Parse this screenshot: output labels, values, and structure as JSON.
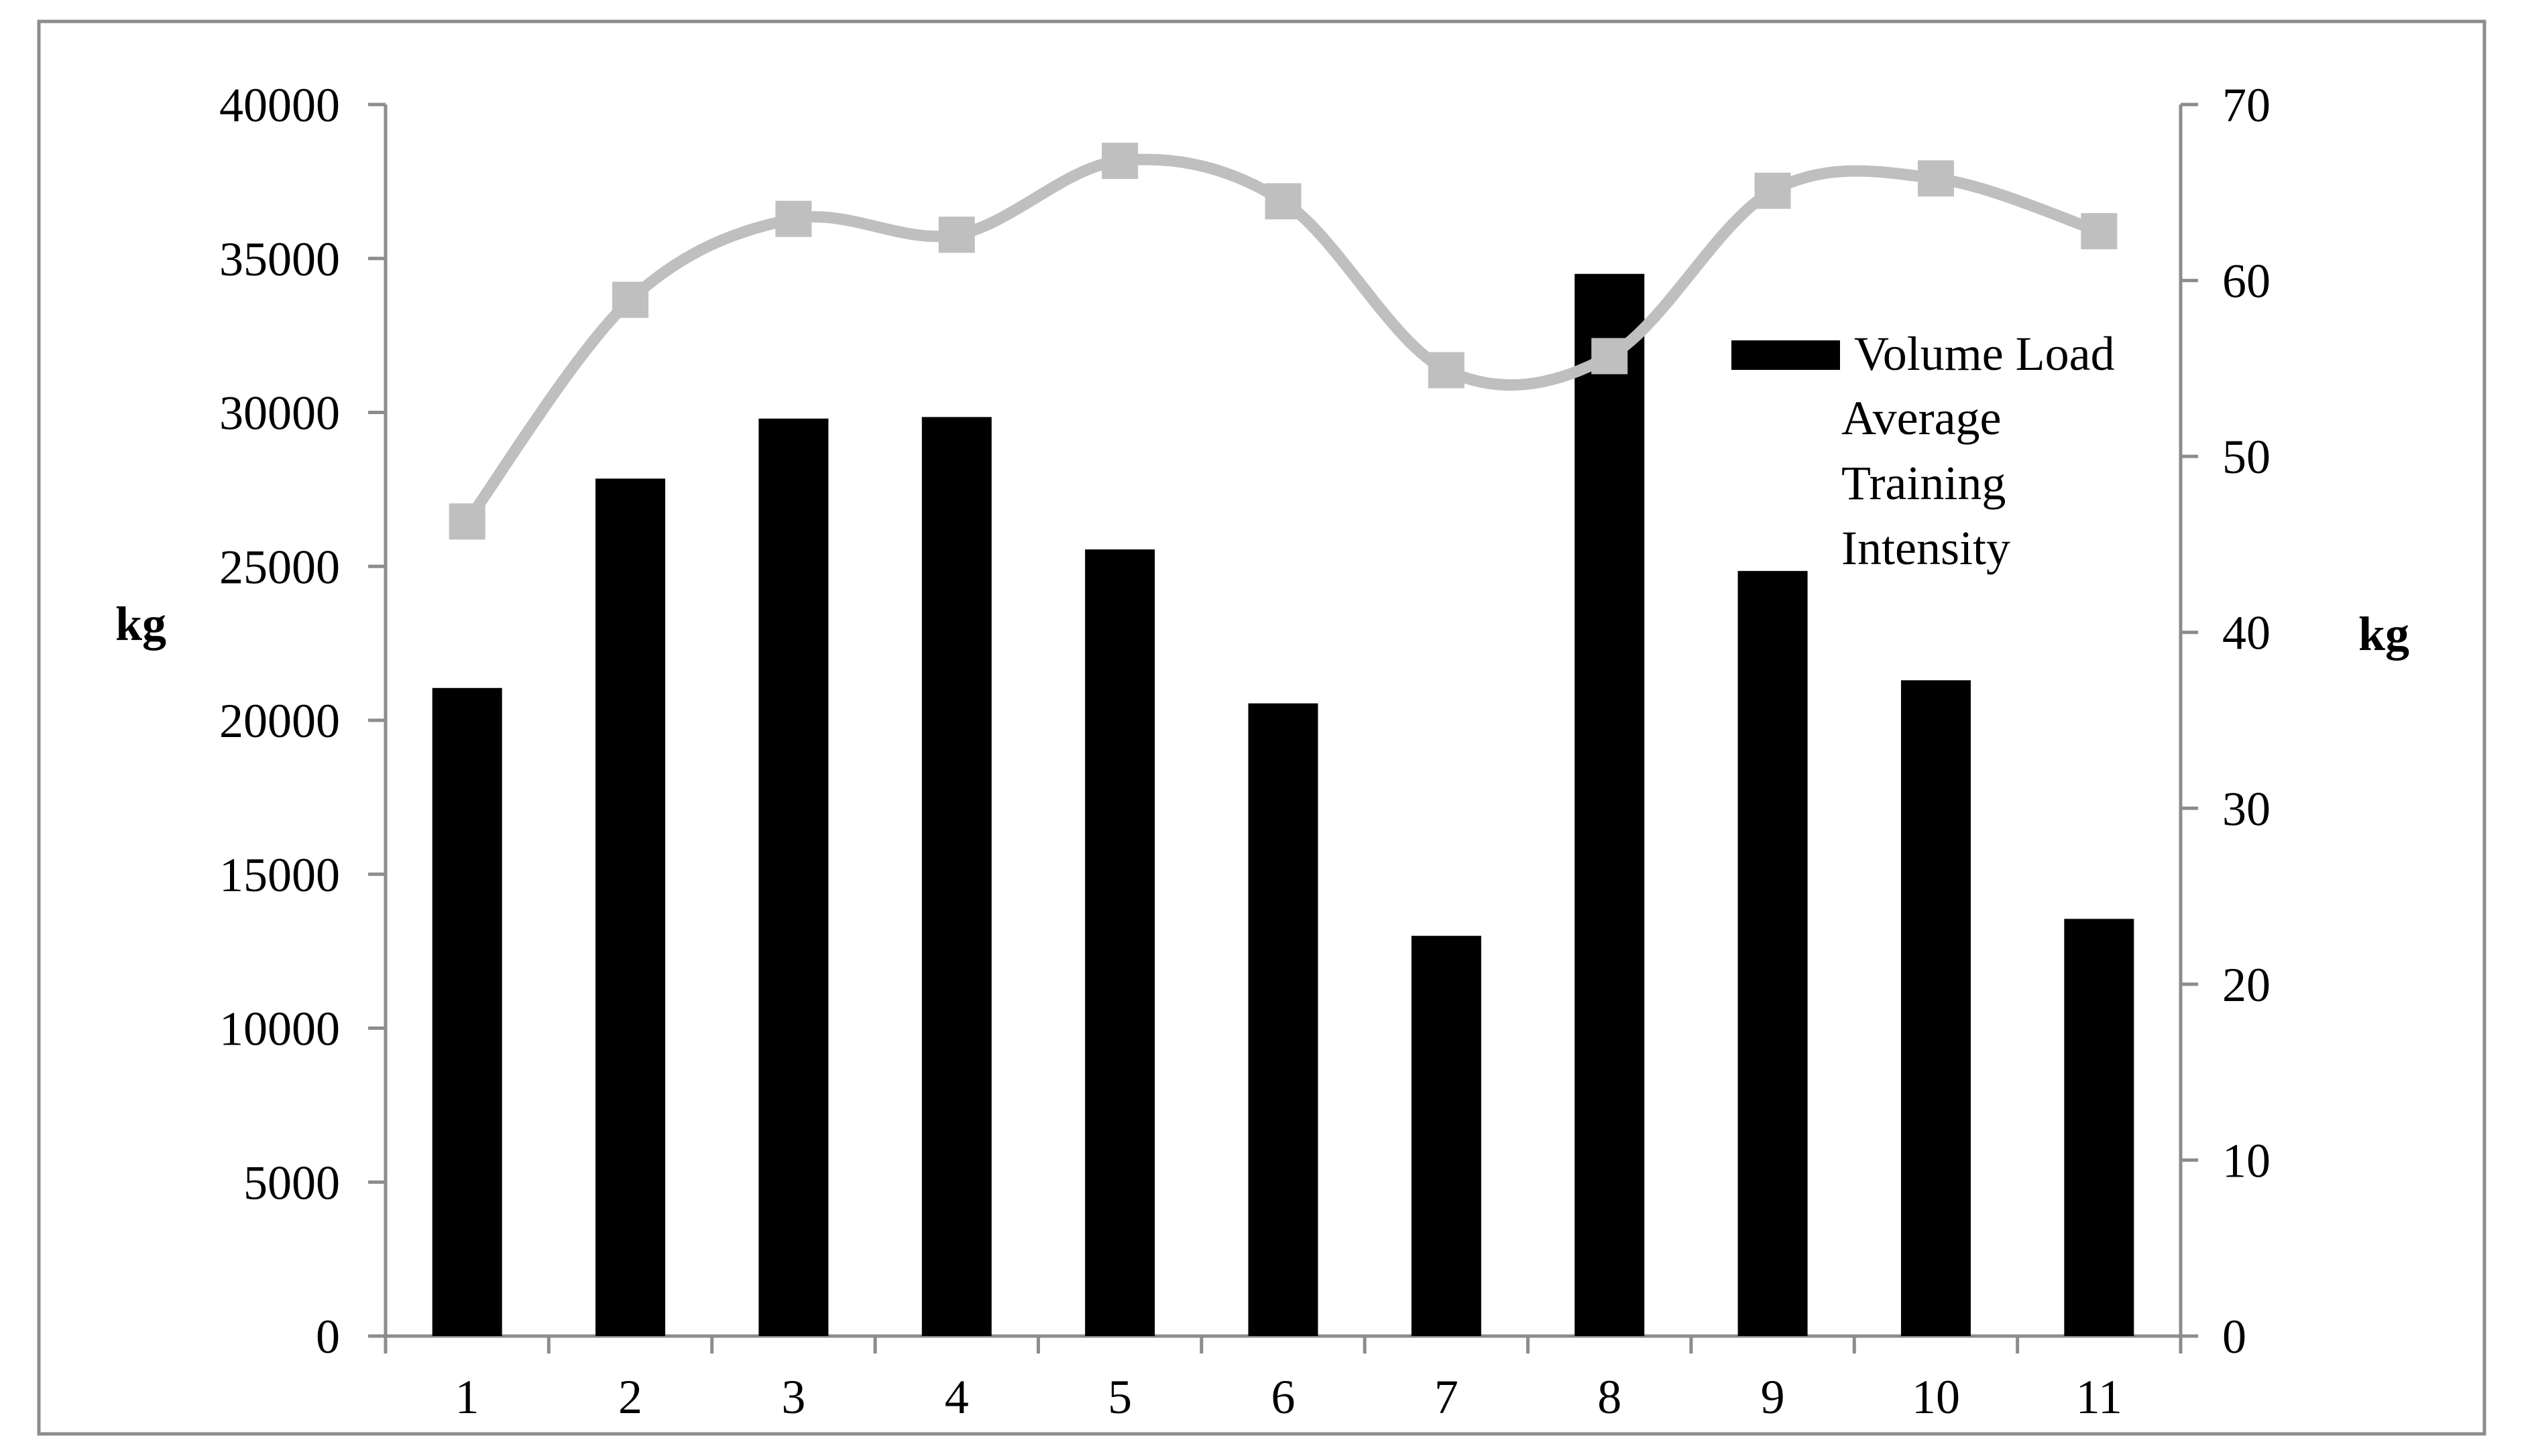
{
  "chart_data": {
    "type": "bar",
    "categories": [
      "1",
      "2",
      "3",
      "4",
      "5",
      "6",
      "7",
      "8",
      "9",
      "10",
      "11"
    ],
    "series": [
      {
        "name": "Volume Load",
        "type": "bar",
        "axis": "left",
        "color": "#000000",
        "values": [
          21050,
          27850,
          29800,
          29850,
          25550,
          20550,
          13000,
          34500,
          24850,
          21300,
          13550
        ]
      },
      {
        "name": "Average Training Intensity",
        "type": "line",
        "axis": "right",
        "color": "#bfbfbf",
        "smooth": true,
        "marker": "square",
        "values": [
          46.3,
          58.9,
          63.5,
          62.6,
          66.8,
          64.5,
          54.9,
          55.7,
          65.1,
          65.8,
          62.8
        ]
      }
    ],
    "ylabel": "kg",
    "y2label": "kg",
    "ylim": [
      0,
      40000
    ],
    "yticks": [
      "0",
      "5000",
      "10000",
      "15000",
      "20000",
      "25000",
      "30000",
      "35000",
      "40000"
    ],
    "y2lim": [
      0,
      70
    ],
    "y2ticks": [
      "0",
      "10",
      "20",
      "30",
      "40",
      "50",
      "60",
      "70"
    ],
    "grid": false,
    "legend_position": "right"
  }
}
